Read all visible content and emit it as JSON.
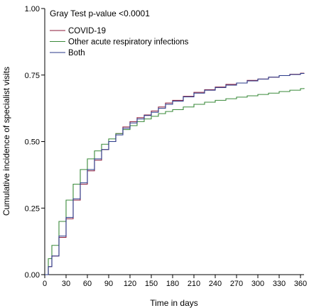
{
  "chart_data": {
    "type": "line",
    "title": "",
    "annotation": "Gray Test p-value <0.0001",
    "xlabel": "Time in days",
    "ylabel": "Cumulative incidence of specialist visits",
    "xlim": [
      0,
      365
    ],
    "ylim": [
      0,
      1
    ],
    "x_ticks": [
      0,
      30,
      60,
      90,
      120,
      150,
      180,
      210,
      240,
      270,
      300,
      330,
      360
    ],
    "y_ticks": [
      0.0,
      0.25,
      0.5,
      0.75,
      1.0
    ],
    "y_tick_labels": [
      "0.00",
      "0.25",
      "0.50",
      "0.75",
      "1.00"
    ],
    "grid": false,
    "legend_position": "top-left",
    "series": [
      {
        "name": "COVID-19",
        "color": "#8b1a3a",
        "x": [
          0,
          5,
          10,
          20,
          30,
          40,
          50,
          60,
          70,
          80,
          90,
          100,
          110,
          120,
          130,
          140,
          150,
          160,
          170,
          180,
          195,
          210,
          225,
          240,
          255,
          270,
          285,
          300,
          315,
          330,
          345,
          360,
          365
        ],
        "y": [
          0.0,
          0.03,
          0.07,
          0.14,
          0.21,
          0.28,
          0.34,
          0.39,
          0.43,
          0.47,
          0.5,
          0.53,
          0.555,
          0.575,
          0.59,
          0.6,
          0.615,
          0.63,
          0.645,
          0.655,
          0.67,
          0.685,
          0.695,
          0.705,
          0.715,
          0.72,
          0.73,
          0.735,
          0.742,
          0.748,
          0.753,
          0.757,
          0.758
        ]
      },
      {
        "name": "Other acute respiratory infections",
        "color": "#3a8a3a",
        "x": [
          0,
          5,
          10,
          20,
          30,
          40,
          50,
          60,
          70,
          80,
          90,
          100,
          110,
          120,
          130,
          140,
          150,
          160,
          170,
          180,
          195,
          210,
          225,
          240,
          255,
          270,
          285,
          300,
          315,
          330,
          345,
          360,
          365
        ],
        "y": [
          0.0,
          0.06,
          0.11,
          0.2,
          0.28,
          0.34,
          0.395,
          0.435,
          0.465,
          0.49,
          0.51,
          0.53,
          0.545,
          0.56,
          0.575,
          0.585,
          0.595,
          0.605,
          0.613,
          0.62,
          0.63,
          0.64,
          0.648,
          0.655,
          0.661,
          0.667,
          0.672,
          0.677,
          0.682,
          0.688,
          0.693,
          0.699,
          0.701
        ]
      },
      {
        "name": "Both",
        "color": "#2a3a8a",
        "x": [
          0,
          5,
          10,
          20,
          30,
          40,
          50,
          60,
          70,
          80,
          90,
          100,
          110,
          120,
          130,
          140,
          150,
          160,
          170,
          180,
          195,
          210,
          225,
          240,
          255,
          270,
          285,
          300,
          315,
          330,
          345,
          360,
          365
        ],
        "y": [
          0.0,
          0.03,
          0.07,
          0.145,
          0.215,
          0.285,
          0.345,
          0.395,
          0.435,
          0.47,
          0.5,
          0.525,
          0.55,
          0.57,
          0.585,
          0.598,
          0.61,
          0.625,
          0.64,
          0.652,
          0.668,
          0.682,
          0.693,
          0.703,
          0.712,
          0.72,
          0.728,
          0.735,
          0.742,
          0.748,
          0.752,
          0.756,
          0.757
        ]
      }
    ]
  }
}
